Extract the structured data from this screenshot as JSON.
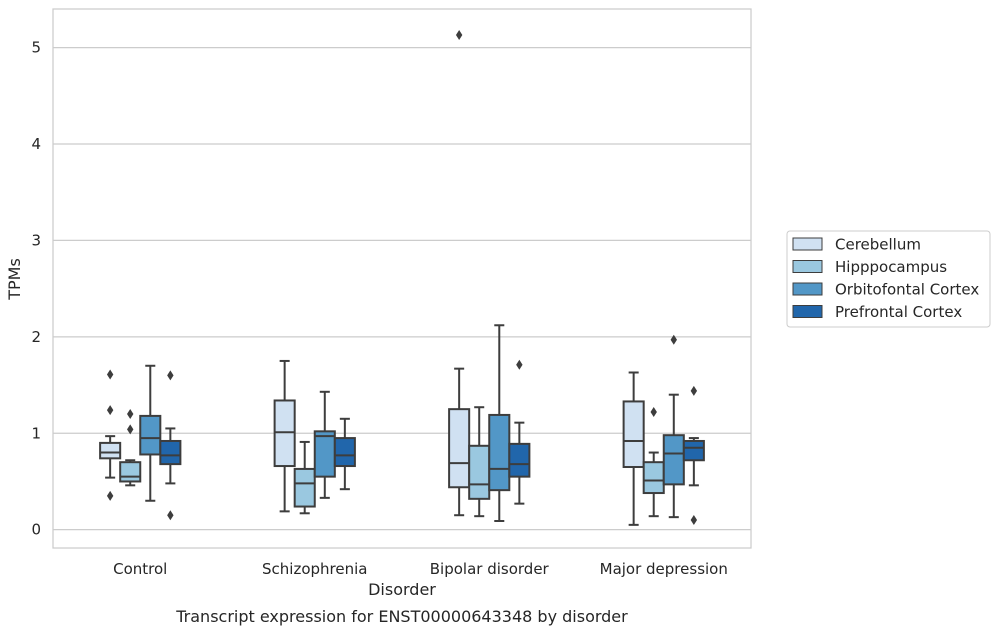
{
  "chart_data": {
    "type": "boxplot",
    "title": "Transcript expression for ENST00000643348 by disorder",
    "xlabel": "Disorder",
    "ylabel": "TPMs",
    "ylim": [
      -0.19,
      5.4
    ],
    "yticks": [
      0,
      1,
      2,
      3,
      4,
      5
    ],
    "grid": "horizontal",
    "legend_position": "right",
    "categories": [
      "Control",
      "Schizophrenia",
      "Bipolar disorder",
      "Major depression"
    ],
    "series": [
      {
        "name": "Cerebellum",
        "color": "#d0e1f2",
        "boxes": [
          {
            "whislo": 0.54,
            "q1": 0.74,
            "med": 0.8,
            "q3": 0.9,
            "whishi": 0.97,
            "fliers": [
              1.61,
              1.24,
              0.35
            ]
          },
          {
            "whislo": 0.19,
            "q1": 0.66,
            "med": 1.01,
            "q3": 1.34,
            "whishi": 1.75,
            "fliers": []
          },
          {
            "whislo": 0.15,
            "q1": 0.44,
            "med": 0.69,
            "q3": 1.25,
            "whishi": 1.67,
            "fliers": [
              5.13
            ]
          },
          {
            "whislo": 0.05,
            "q1": 0.65,
            "med": 0.92,
            "q3": 1.33,
            "whishi": 1.63,
            "fliers": []
          }
        ]
      },
      {
        "name": "Hipppocampus",
        "color": "#9ac8e0",
        "boxes": [
          {
            "whislo": 0.46,
            "q1": 0.5,
            "med": 0.55,
            "q3": 0.7,
            "whishi": 0.72,
            "fliers": [
              1.2,
              1.04
            ]
          },
          {
            "whislo": 0.17,
            "q1": 0.24,
            "med": 0.48,
            "q3": 0.63,
            "whishi": 0.91,
            "fliers": []
          },
          {
            "whislo": 0.14,
            "q1": 0.32,
            "med": 0.47,
            "q3": 0.87,
            "whishi": 1.27,
            "fliers": []
          },
          {
            "whislo": 0.14,
            "q1": 0.38,
            "med": 0.51,
            "q3": 0.7,
            "whishi": 0.8,
            "fliers": [
              1.22
            ]
          }
        ]
      },
      {
        "name": "Orbitofontal Cortex",
        "color": "#5297c7",
        "boxes": [
          {
            "whislo": 0.3,
            "q1": 0.78,
            "med": 0.95,
            "q3": 1.18,
            "whishi": 1.7,
            "fliers": []
          },
          {
            "whislo": 0.33,
            "q1": 0.55,
            "med": 0.97,
            "q3": 1.02,
            "whishi": 1.43,
            "fliers": []
          },
          {
            "whislo": 0.09,
            "q1": 0.41,
            "med": 0.63,
            "q3": 1.19,
            "whishi": 2.12,
            "fliers": []
          },
          {
            "whislo": 0.13,
            "q1": 0.47,
            "med": 0.79,
            "q3": 0.98,
            "whishi": 1.4,
            "fliers": [
              1.97
            ]
          }
        ]
      },
      {
        "name": "Prefrontal Cortex",
        "color": "#2166ab",
        "boxes": [
          {
            "whislo": 0.48,
            "q1": 0.68,
            "med": 0.77,
            "q3": 0.92,
            "whishi": 1.05,
            "fliers": [
              1.6,
              0.15
            ]
          },
          {
            "whislo": 0.42,
            "q1": 0.66,
            "med": 0.77,
            "q3": 0.95,
            "whishi": 1.15,
            "fliers": []
          },
          {
            "whislo": 0.27,
            "q1": 0.55,
            "med": 0.68,
            "q3": 0.89,
            "whishi": 1.11,
            "fliers": [
              1.71
            ]
          },
          {
            "whislo": 0.46,
            "q1": 0.72,
            "med": 0.85,
            "q3": 0.92,
            "whishi": 0.95,
            "fliers": [
              1.44,
              0.1
            ]
          }
        ]
      }
    ]
  }
}
